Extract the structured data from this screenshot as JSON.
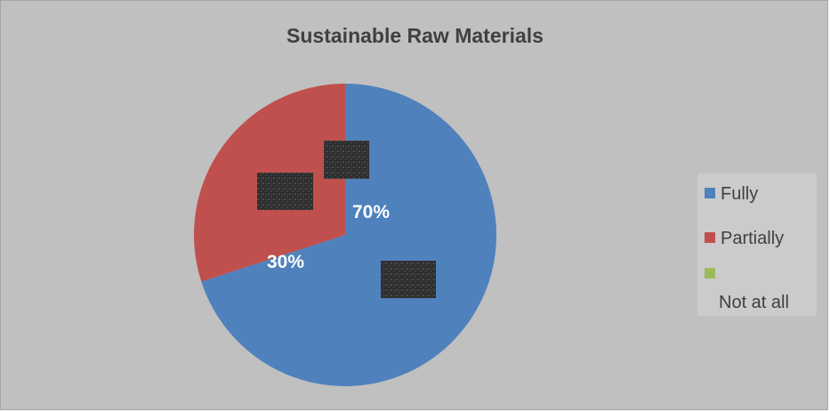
{
  "chart_data": {
    "type": "pie",
    "title": "Sustainable Raw Materials",
    "categories": [
      "Fully",
      "Partially",
      "Not at all"
    ],
    "values": [
      70,
      30,
      0
    ],
    "data_labels": [
      "70%",
      "30%",
      ""
    ],
    "colors": [
      "#4f81bd",
      "#c0504d",
      "#9bbb59"
    ],
    "legend_position": "right"
  }
}
